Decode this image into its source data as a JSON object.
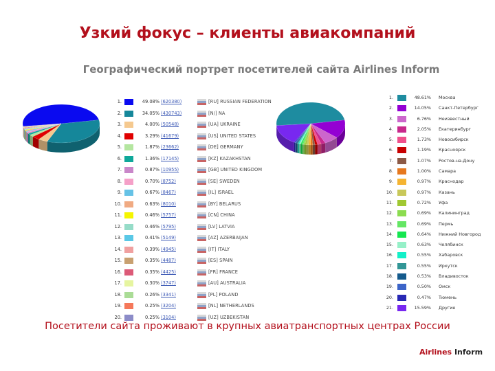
{
  "slide": {
    "title": "Узкий фокус – клиенты авиакомпаний",
    "subtitle": "Географический портрет посетителей сайта Airlines Inform",
    "footer_note": "Посетители сайта проживают в крупных авиатранспортных центрах России",
    "brand_part1": "Airlines",
    "brand_part2": "Inform"
  },
  "chart_data": [
    {
      "type": "pie",
      "title": "",
      "rows": [
        {
          "idx": "1.",
          "pct": "49.08%",
          "count": "(620380)",
          "country": "[RU] RUSSIAN FEDERATION",
          "value": 49.08,
          "color": "#0a0af0"
        },
        {
          "idx": "2.",
          "pct": "34.05%",
          "count": "(430743)",
          "country": "[N/] NA",
          "value": 34.05,
          "color": "#15879a"
        },
        {
          "idx": "3.",
          "pct": "4.00%",
          "count": "(50548)",
          "country": "[UA] UKRAINE",
          "value": 4.0,
          "color": "#f5c98f"
        },
        {
          "idx": "4.",
          "pct": "3.29%",
          "count": "(41679)",
          "country": "[US] UNITED STATES",
          "value": 3.29,
          "color": "#e00000"
        },
        {
          "idx": "5.",
          "pct": "1.87%",
          "count": "(23662)",
          "country": "[DE] GERMANY",
          "value": 1.87,
          "color": "#b4e6a0"
        },
        {
          "idx": "6.",
          "pct": "1.36%",
          "count": "(17145)",
          "country": "[KZ] KAZAKHSTAN",
          "value": 1.36,
          "color": "#0fa89a"
        },
        {
          "idx": "7.",
          "pct": "0.87%",
          "count": "(10955)",
          "country": "[GB] UNITED KINGDOM",
          "value": 0.87,
          "color": "#c987c9"
        },
        {
          "idx": "8.",
          "pct": "0.70%",
          "count": "(8752)",
          "country": "[SE] SWEDEN",
          "value": 0.7,
          "color": "#f5a0c8"
        },
        {
          "idx": "9.",
          "pct": "0.67%",
          "count": "(8467)",
          "country": "[IL] ISRAEL",
          "value": 0.67,
          "color": "#66c2e6"
        },
        {
          "idx": "10.",
          "pct": "0.63%",
          "count": "(8010)",
          "country": "[BY] BELARUS",
          "value": 0.63,
          "color": "#f0aa82"
        },
        {
          "idx": "11.",
          "pct": "0.46%",
          "count": "(5757)",
          "country": "[CN] CHINA",
          "value": 0.46,
          "color": "#f5f500"
        },
        {
          "idx": "12.",
          "pct": "0.46%",
          "count": "(5795)",
          "country": "[LV] LATVIA",
          "value": 0.46,
          "color": "#96dcc8"
        },
        {
          "idx": "13.",
          "pct": "0.41%",
          "count": "(5149)",
          "country": "[AZ] AZERBAIJAN",
          "value": 0.41,
          "color": "#5ac8e6"
        },
        {
          "idx": "14.",
          "pct": "0.39%",
          "count": "(4945)",
          "country": "[IT] ITALY",
          "value": 0.39,
          "color": "#f0a0a0"
        },
        {
          "idx": "15.",
          "pct": "0.35%",
          "count": "(4487)",
          "country": "[ES] SPAIN",
          "value": 0.35,
          "color": "#c8a070"
        },
        {
          "idx": "16.",
          "pct": "0.35%",
          "count": "(4425)",
          "country": "[FR] FRANCE",
          "value": 0.35,
          "color": "#dc5a78"
        },
        {
          "idx": "17.",
          "pct": "0.30%",
          "count": "(3747)",
          "country": "[AU] AUSTRALIA",
          "value": 0.3,
          "color": "#e6f5a0"
        },
        {
          "idx": "18.",
          "pct": "0.26%",
          "count": "(3341)",
          "country": "[PL] POLAND",
          "value": 0.26,
          "color": "#aadc96"
        },
        {
          "idx": "19.",
          "pct": "0.25%",
          "count": "(3204)",
          "country": "[NL] NETHERLANDS",
          "value": 0.25,
          "color": "#f5785a"
        },
        {
          "idx": "20.",
          "pct": "0.25%",
          "count": "(3104)",
          "country": "[UZ] UZBEKISTAN",
          "value": 0.25,
          "color": "#8c8cc8"
        }
      ]
    },
    {
      "type": "pie",
      "title": "",
      "rows": [
        {
          "idx": "1.",
          "pct": "48.61%",
          "city": "Москва",
          "value": 48.61,
          "color": "#1e8ca0"
        },
        {
          "idx": "2.",
          "pct": "14.05%",
          "city": "Санкт-Петербург",
          "value": 14.05,
          "color": "#9400d3"
        },
        {
          "idx": "3.",
          "pct": "6.76%",
          "city": "Неизвестный",
          "value": 6.76,
          "color": "#cc66cc"
        },
        {
          "idx": "4.",
          "pct": "2.05%",
          "city": "Екатеринбург",
          "value": 2.05,
          "color": "#c8288c"
        },
        {
          "idx": "5.",
          "pct": "1.73%",
          "city": "Новосибирск",
          "value": 1.73,
          "color": "#f0508c"
        },
        {
          "idx": "6.",
          "pct": "1.19%",
          "city": "Красноярск",
          "value": 1.19,
          "color": "#c80000"
        },
        {
          "idx": "7.",
          "pct": "1.07%",
          "city": "Ростов-на-Дону",
          "value": 1.07,
          "color": "#8c5a46"
        },
        {
          "idx": "8.",
          "pct": "1.00%",
          "city": "Самара",
          "value": 1.0,
          "color": "#e6781e"
        },
        {
          "idx": "9.",
          "pct": "0.97%",
          "city": "Краснодар",
          "value": 0.97,
          "color": "#f5b432"
        },
        {
          "idx": "10.",
          "pct": "0.97%",
          "city": "Казань",
          "value": 0.97,
          "color": "#c8c85a"
        },
        {
          "idx": "11.",
          "pct": "0.72%",
          "city": "Уфа",
          "value": 0.72,
          "color": "#a0c832"
        },
        {
          "idx": "12.",
          "pct": "0.69%",
          "city": "Калининград",
          "value": 0.69,
          "color": "#8cdc50"
        },
        {
          "idx": "13.",
          "pct": "0.69%",
          "city": "Пермь",
          "value": 0.69,
          "color": "#64e664"
        },
        {
          "idx": "14.",
          "pct": "0.64%",
          "city": "Нижний Новгород",
          "value": 0.64,
          "color": "#14e650"
        },
        {
          "idx": "15.",
          "pct": "0.63%",
          "city": "Челябинск",
          "value": 0.63,
          "color": "#96f0c8"
        },
        {
          "idx": "16.",
          "pct": "0.55%",
          "city": "Хабаровск",
          "value": 0.55,
          "color": "#14f0c8"
        },
        {
          "idx": "17.",
          "pct": "0.55%",
          "city": "Иркутск",
          "value": 0.55,
          "color": "#329696"
        },
        {
          "idx": "18.",
          "pct": "0.53%",
          "city": "Владивосток",
          "value": 0.53,
          "color": "#145a8c"
        },
        {
          "idx": "19.",
          "pct": "0.50%",
          "city": "Омск",
          "value": 0.5,
          "color": "#3c64c8"
        },
        {
          "idx": "20.",
          "pct": "0.47%",
          "city": "Тюмень",
          "value": 0.47,
          "color": "#2828b4"
        },
        {
          "idx": "21.",
          "pct": "15.59%",
          "city": "Другие",
          "value": 15.59,
          "color": "#7828f0"
        }
      ]
    }
  ]
}
